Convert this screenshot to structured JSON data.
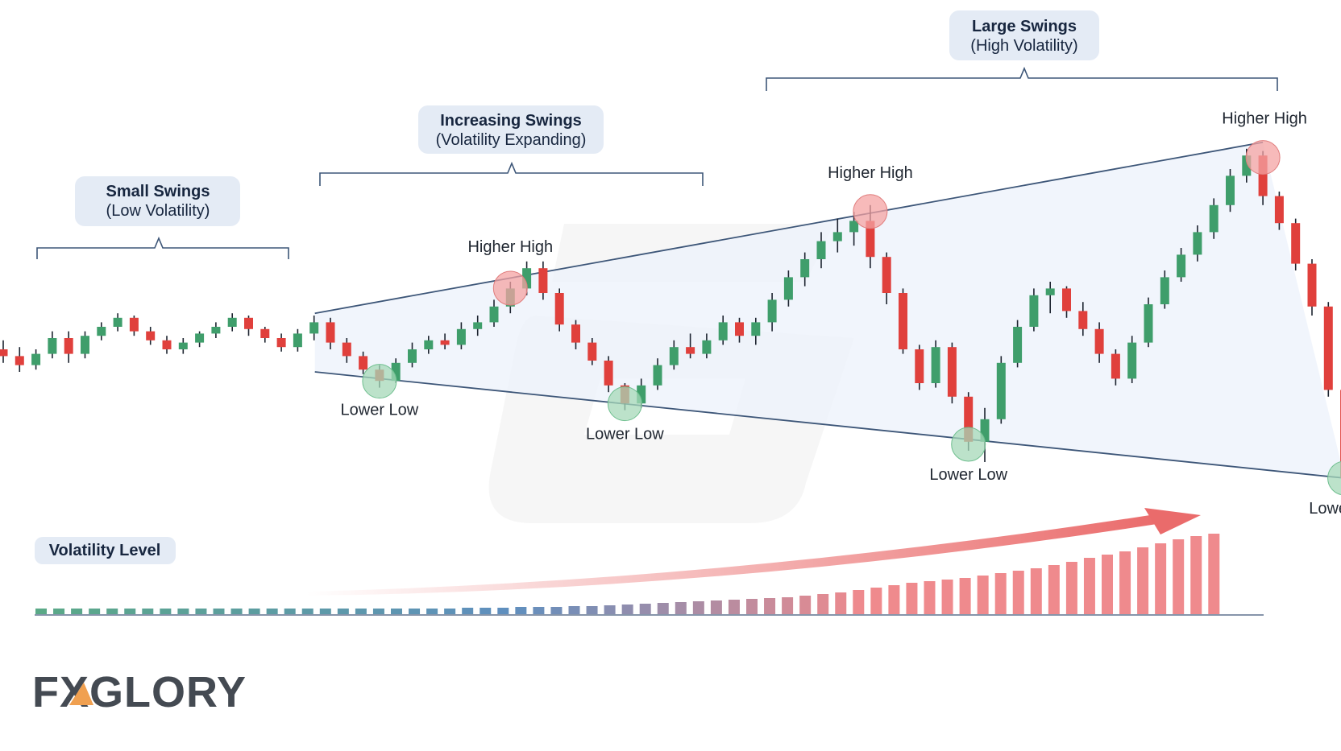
{
  "phases": [
    {
      "label_line1": "Small Swings",
      "label_line2": "(Low Volatility)"
    },
    {
      "label_line1": "Increasing Swings",
      "label_line2": "(Volatility Expanding)"
    },
    {
      "label_line1": "Large Swings",
      "label_line2": "(High Volatility)"
    }
  ],
  "swing_points": [
    {
      "type": "low",
      "label": "Lower Low"
    },
    {
      "type": "high",
      "label": "Higher High"
    },
    {
      "type": "low",
      "label": "Lower Low"
    },
    {
      "type": "high",
      "label": "Higher High"
    },
    {
      "type": "low",
      "label": "Lower Low"
    },
    {
      "type": "high",
      "label": "Higher High"
    },
    {
      "type": "low",
      "label": "Lower Low"
    }
  ],
  "volatility": {
    "label": "Volatility Level",
    "trend": "increasing",
    "levels": [
      0.05,
      0.05,
      0.05,
      0.05,
      0.05,
      0.05,
      0.05,
      0.05,
      0.05,
      0.05,
      0.05,
      0.05,
      0.05,
      0.05,
      0.05,
      0.05,
      0.05,
      0.06,
      0.06,
      0.06,
      0.07,
      0.07,
      0.07,
      0.07,
      0.08,
      0.08,
      0.08,
      0.09,
      0.09,
      0.09,
      0.1,
      0.1,
      0.11,
      0.12,
      0.13,
      0.14,
      0.15,
      0.16,
      0.17,
      0.18,
      0.19,
      0.2,
      0.21,
      0.23,
      0.25,
      0.27,
      0.3,
      0.33,
      0.36,
      0.39,
      0.41,
      0.43,
      0.45,
      0.48,
      0.51,
      0.54,
      0.57,
      0.61,
      0.65,
      0.7,
      0.74,
      0.78,
      0.83,
      0.88,
      0.93,
      0.97,
      1.0
    ]
  },
  "logo": {
    "text": "FXGLORY"
  },
  "colors": {
    "bull": "#3f9e6b",
    "bear": "#e0403c",
    "high_marker": "#f4a3a3",
    "low_marker": "#a6d8b8",
    "channel_fill": "#eef3fb",
    "trendline": "#3d5678",
    "label_bg": "#e4ebf5",
    "label_text": "#17263f",
    "arrow": "#ea6b6b"
  },
  "chart_data": {
    "type": "candlestick",
    "candles": [
      {
        "o": 60,
        "h": 64,
        "l": 54,
        "c": 57
      },
      {
        "o": 57,
        "h": 61,
        "l": 50,
        "c": 53
      },
      {
        "o": 53,
        "h": 60,
        "l": 51,
        "c": 58
      },
      {
        "o": 58,
        "h": 68,
        "l": 56,
        "c": 65
      },
      {
        "o": 65,
        "h": 68,
        "l": 54,
        "c": 58
      },
      {
        "o": 58,
        "h": 68,
        "l": 56,
        "c": 66
      },
      {
        "o": 66,
        "h": 72,
        "l": 64,
        "c": 70
      },
      {
        "o": 70,
        "h": 76,
        "l": 68,
        "c": 74
      },
      {
        "o": 74,
        "h": 75,
        "l": 66,
        "c": 68
      },
      {
        "o": 68,
        "h": 70,
        "l": 62,
        "c": 64
      },
      {
        "o": 64,
        "h": 66,
        "l": 58,
        "c": 60
      },
      {
        "o": 60,
        "h": 65,
        "l": 58,
        "c": 63
      },
      {
        "o": 63,
        "h": 68,
        "l": 61,
        "c": 67
      },
      {
        "o": 67,
        "h": 72,
        "l": 65,
        "c": 70
      },
      {
        "o": 70,
        "h": 76,
        "l": 68,
        "c": 74
      },
      {
        "o": 74,
        "h": 75,
        "l": 66,
        "c": 69
      },
      {
        "o": 69,
        "h": 70,
        "l": 63,
        "c": 65
      },
      {
        "o": 65,
        "h": 67,
        "l": 59,
        "c": 61
      },
      {
        "o": 61,
        "h": 69,
        "l": 59,
        "c": 67
      },
      {
        "o": 67,
        "h": 75,
        "l": 64,
        "c": 72
      },
      {
        "o": 72,
        "h": 74,
        "l": 60,
        "c": 63
      },
      {
        "o": 63,
        "h": 65,
        "l": 54,
        "c": 57
      },
      {
        "o": 57,
        "h": 59,
        "l": 49,
        "c": 51
      },
      {
        "o": 51,
        "h": 53,
        "l": 43,
        "c": 46
      },
      {
        "o": 46,
        "h": 56,
        "l": 45,
        "c": 54
      },
      {
        "o": 54,
        "h": 63,
        "l": 52,
        "c": 60
      },
      {
        "o": 60,
        "h": 66,
        "l": 58,
        "c": 64
      },
      {
        "o": 64,
        "h": 67,
        "l": 60,
        "c": 62
      },
      {
        "o": 62,
        "h": 72,
        "l": 60,
        "c": 69
      },
      {
        "o": 69,
        "h": 75,
        "l": 66,
        "c": 72
      },
      {
        "o": 72,
        "h": 82,
        "l": 70,
        "c": 79
      },
      {
        "o": 79,
        "h": 90,
        "l": 76,
        "c": 87
      },
      {
        "o": 87,
        "h": 99,
        "l": 84,
        "c": 96
      },
      {
        "o": 96,
        "h": 99,
        "l": 82,
        "c": 85
      },
      {
        "o": 85,
        "h": 87,
        "l": 68,
        "c": 71
      },
      {
        "o": 71,
        "h": 73,
        "l": 60,
        "c": 63
      },
      {
        "o": 63,
        "h": 65,
        "l": 53,
        "c": 55
      },
      {
        "o": 55,
        "h": 57,
        "l": 41,
        "c": 44
      },
      {
        "o": 44,
        "h": 45,
        "l": 33,
        "c": 36
      },
      {
        "o": 36,
        "h": 47,
        "l": 34,
        "c": 44
      },
      {
        "o": 44,
        "h": 56,
        "l": 42,
        "c": 53
      },
      {
        "o": 53,
        "h": 64,
        "l": 51,
        "c": 61
      },
      {
        "o": 61,
        "h": 67,
        "l": 56,
        "c": 58
      },
      {
        "o": 58,
        "h": 67,
        "l": 56,
        "c": 64
      },
      {
        "o": 64,
        "h": 75,
        "l": 62,
        "c": 72
      },
      {
        "o": 72,
        "h": 74,
        "l": 63,
        "c": 66
      },
      {
        "o": 66,
        "h": 74,
        "l": 62,
        "c": 72
      },
      {
        "o": 72,
        "h": 85,
        "l": 68,
        "c": 82
      },
      {
        "o": 82,
        "h": 95,
        "l": 79,
        "c": 92
      },
      {
        "o": 92,
        "h": 103,
        "l": 88,
        "c": 100
      },
      {
        "o": 100,
        "h": 112,
        "l": 96,
        "c": 108
      },
      {
        "o": 108,
        "h": 118,
        "l": 103,
        "c": 112
      },
      {
        "o": 112,
        "h": 121,
        "l": 106,
        "c": 117
      },
      {
        "o": 117,
        "h": 124,
        "l": 96,
        "c": 101
      },
      {
        "o": 101,
        "h": 103,
        "l": 80,
        "c": 85
      },
      {
        "o": 85,
        "h": 87,
        "l": 58,
        "c": 60
      },
      {
        "o": 60,
        "h": 62,
        "l": 42,
        "c": 45
      },
      {
        "o": 45,
        "h": 64,
        "l": 43,
        "c": 61
      },
      {
        "o": 61,
        "h": 63,
        "l": 36,
        "c": 39
      },
      {
        "o": 39,
        "h": 41,
        "l": 15,
        "c": 19
      },
      {
        "o": 19,
        "h": 34,
        "l": 10,
        "c": 29
      },
      {
        "o": 29,
        "h": 57,
        "l": 27,
        "c": 54
      },
      {
        "o": 54,
        "h": 73,
        "l": 52,
        "c": 70
      },
      {
        "o": 70,
        "h": 87,
        "l": 68,
        "c": 84
      },
      {
        "o": 84,
        "h": 90,
        "l": 76,
        "c": 87
      },
      {
        "o": 87,
        "h": 88,
        "l": 74,
        "c": 77
      },
      {
        "o": 77,
        "h": 81,
        "l": 66,
        "c": 69
      },
      {
        "o": 69,
        "h": 72,
        "l": 54,
        "c": 58
      },
      {
        "o": 58,
        "h": 60,
        "l": 44,
        "c": 47
      },
      {
        "o": 47,
        "h": 66,
        "l": 45,
        "c": 63
      },
      {
        "o": 63,
        "h": 83,
        "l": 61,
        "c": 80
      },
      {
        "o": 80,
        "h": 95,
        "l": 78,
        "c": 92
      },
      {
        "o": 92,
        "h": 105,
        "l": 90,
        "c": 102
      },
      {
        "o": 102,
        "h": 115,
        "l": 99,
        "c": 112
      },
      {
        "o": 112,
        "h": 127,
        "l": 109,
        "c": 124
      },
      {
        "o": 124,
        "h": 140,
        "l": 121,
        "c": 137
      },
      {
        "o": 137,
        "h": 149,
        "l": 134,
        "c": 146
      },
      {
        "o": 146,
        "h": 148,
        "l": 124,
        "c": 128
      },
      {
        "o": 128,
        "h": 130,
        "l": 113,
        "c": 116
      },
      {
        "o": 116,
        "h": 118,
        "l": 95,
        "c": 98
      },
      {
        "o": 98,
        "h": 100,
        "l": 75,
        "c": 79
      },
      {
        "o": 79,
        "h": 81,
        "l": 39,
        "c": 42
      },
      {
        "o": 42,
        "h": 44,
        "l": 0,
        "c": 3
      }
    ]
  }
}
